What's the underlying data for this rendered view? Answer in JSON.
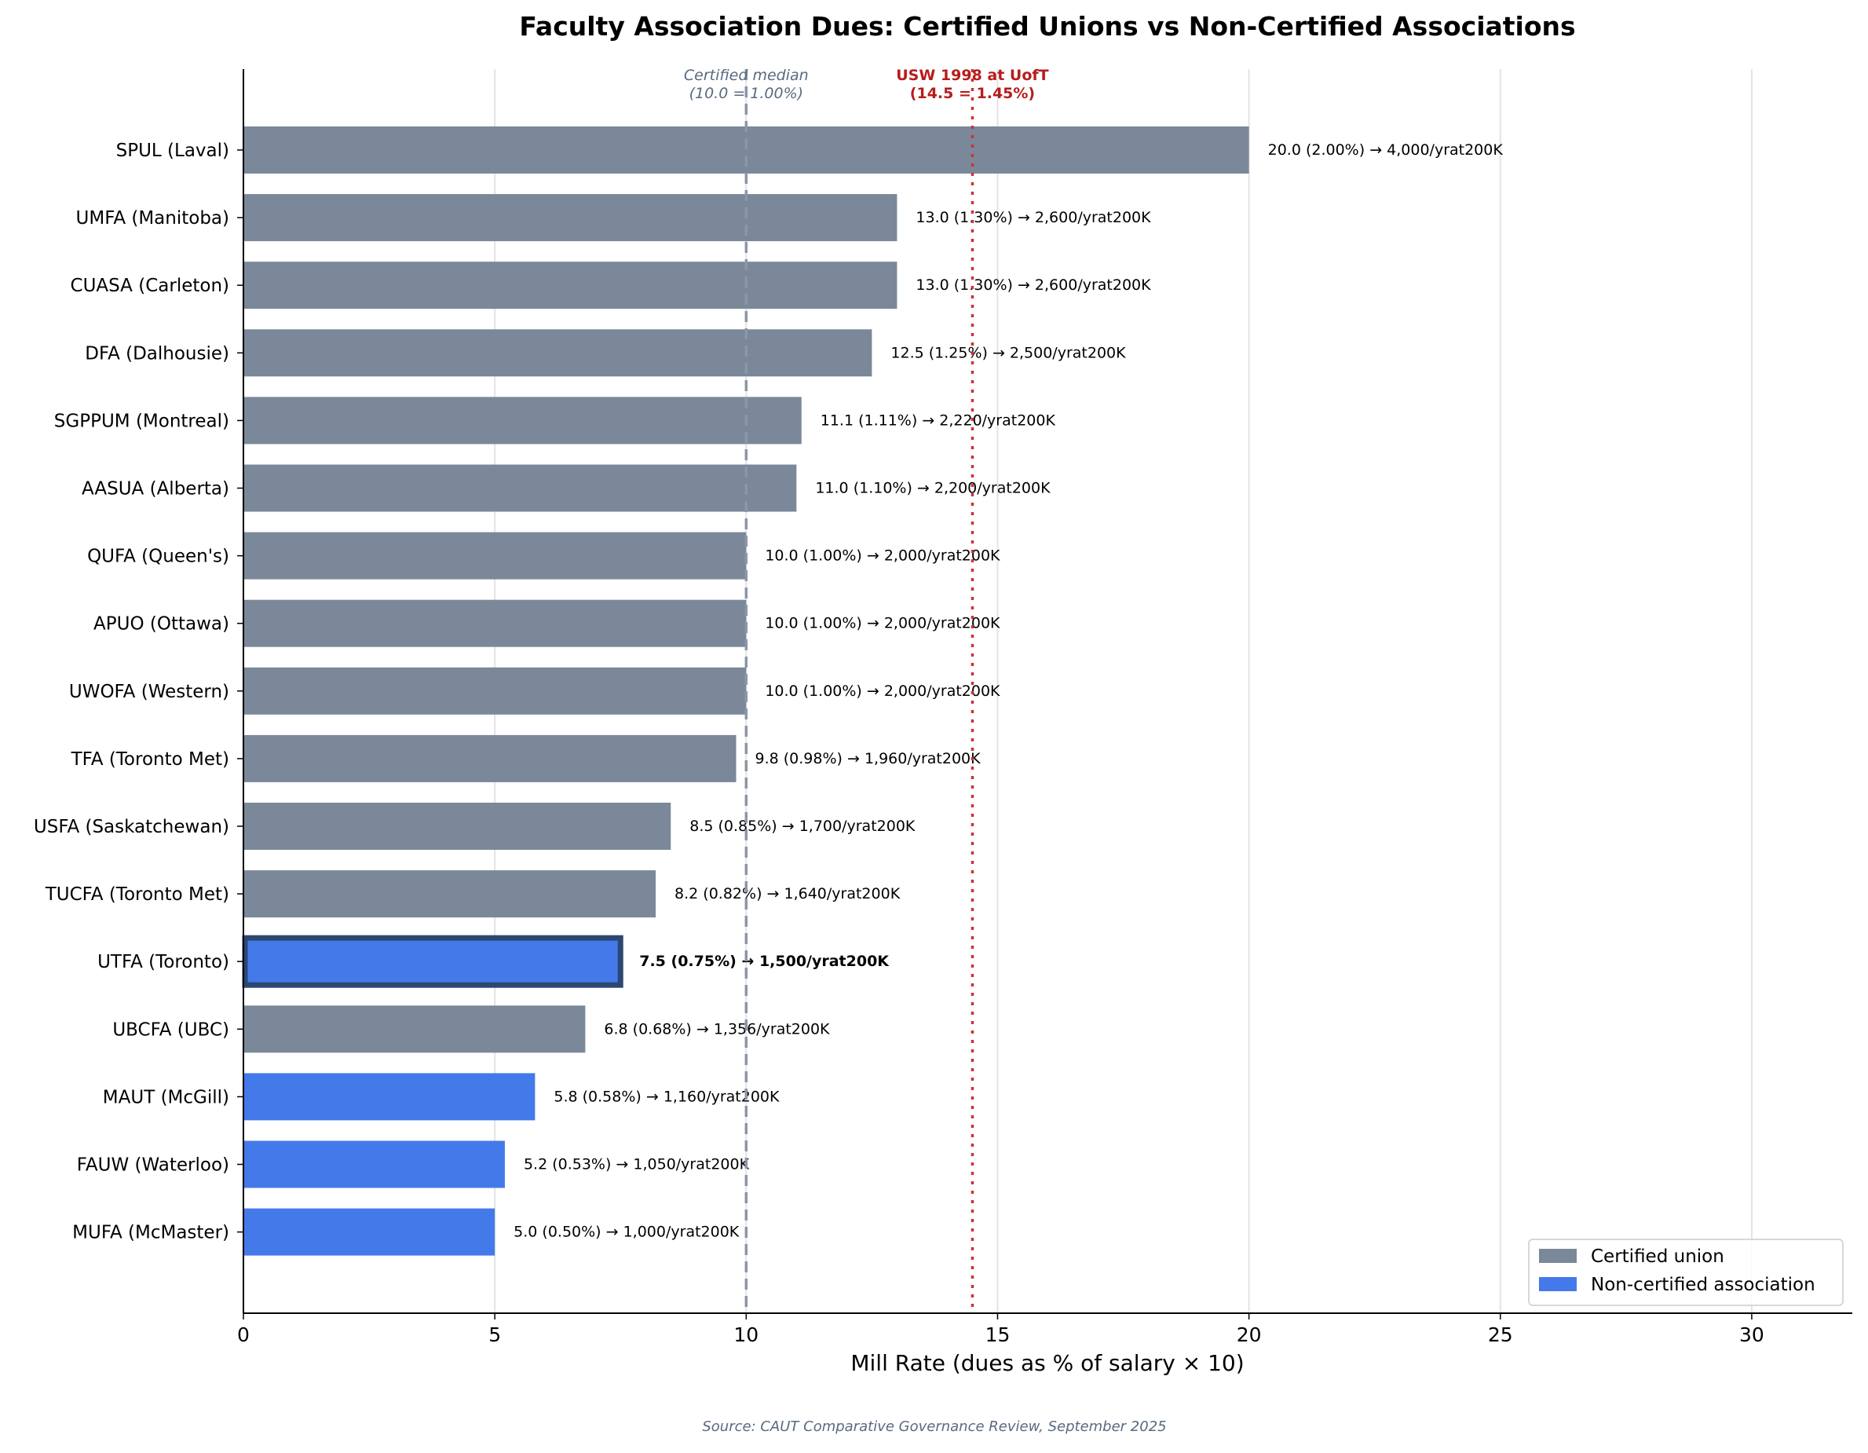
{
  "chart_data": {
    "type": "bar",
    "orientation": "horizontal",
    "title": "Faculty Association Dues: Certified Unions vs Non-Certified Associations",
    "xlabel": "Mill Rate (dues as % of salary × 10)",
    "ylabel": "",
    "xlim": [
      0,
      32
    ],
    "xticks": [
      0,
      5,
      10,
      15,
      20,
      25,
      30
    ],
    "grid": "vertical",
    "legend_position": "bottom-right",
    "colors": {
      "certified": "#7a8899",
      "non_certified": "#4479ea",
      "highlight_edge": "#2c4770",
      "median_line": "#8a97a8",
      "usw_line": "#cc3333"
    },
    "legend": [
      {
        "key": "certified",
        "label": "Certified union"
      },
      {
        "key": "non_certified",
        "label": "Non-certified association"
      }
    ],
    "bars": [
      {
        "label": "SPUL (Laval)",
        "value": 20.0,
        "type": "certified",
        "annotation": "20.0  (2.00%)  → 4,000/yrat200K"
      },
      {
        "label": "UMFA (Manitoba)",
        "value": 13.0,
        "type": "certified",
        "annotation": "13.0  (1.30%)  → 2,600/yrat200K"
      },
      {
        "label": "CUASA (Carleton)",
        "value": 13.0,
        "type": "certified",
        "annotation": "13.0  (1.30%)  → 2,600/yrat200K"
      },
      {
        "label": "DFA (Dalhousie)",
        "value": 12.5,
        "type": "certified",
        "annotation": "12.5  (1.25%)  → 2,500/yrat200K"
      },
      {
        "label": "SGPPUM (Montreal)",
        "value": 11.1,
        "type": "certified",
        "annotation": "11.1  (1.11%)  → 2,220/yrat200K"
      },
      {
        "label": "AASUA (Alberta)",
        "value": 11.0,
        "type": "certified",
        "annotation": "11.0  (1.10%)  → 2,200/yrat200K"
      },
      {
        "label": "QUFA (Queen's)",
        "value": 10.0,
        "type": "certified",
        "annotation": "10.0  (1.00%)  → 2,000/yrat200K"
      },
      {
        "label": "APUO (Ottawa)",
        "value": 10.0,
        "type": "certified",
        "annotation": "10.0  (1.00%)  → 2,000/yrat200K"
      },
      {
        "label": "UWOFA (Western)",
        "value": 10.0,
        "type": "certified",
        "annotation": "10.0  (1.00%)  → 2,000/yrat200K"
      },
      {
        "label": "TFA (Toronto Met)",
        "value": 9.8,
        "type": "certified",
        "annotation": "9.8  (0.98%)  → 1,960/yrat200K"
      },
      {
        "label": "USFA (Saskatchewan)",
        "value": 8.5,
        "type": "certified",
        "annotation": "8.5  (0.85%)  → 1,700/yrat200K"
      },
      {
        "label": "TUCFA (Toronto Met)",
        "value": 8.2,
        "type": "certified",
        "annotation": "8.2  (0.82%)  → 1,640/yrat200K"
      },
      {
        "label": "UTFA (Toronto)",
        "value": 7.5,
        "type": "non_certified",
        "highlight": true,
        "annotation": "7.5  (0.75%)  → 1,500/yrat200K"
      },
      {
        "label": "UBCFA (UBC)",
        "value": 6.8,
        "type": "certified",
        "annotation": "6.8  (0.68%)  → 1,356/yrat200K"
      },
      {
        "label": "MAUT (McGill)",
        "value": 5.8,
        "type": "non_certified",
        "annotation": "5.8  (0.58%)  → 1,160/yrat200K"
      },
      {
        "label": "FAUW (Waterloo)",
        "value": 5.2,
        "type": "non_certified",
        "annotation": "5.2  (0.53%)  → 1,050/yrat200K"
      },
      {
        "label": "MUFA (McMaster)",
        "value": 5.0,
        "type": "non_certified",
        "annotation": "5.0  (0.50%)  → 1,000/yrat200K"
      }
    ],
    "reference_lines": [
      {
        "value": 10.0,
        "style": "dashed",
        "line1": "Certified median",
        "line2": "(10.0 = 1.00%)"
      },
      {
        "value": 14.5,
        "style": "dotted",
        "line1": "USW 1998 at UofT",
        "line2": "(14.5 = 1.45%)"
      }
    ],
    "source": "Source: CAUT Comparative Governance Review, September 2025"
  }
}
